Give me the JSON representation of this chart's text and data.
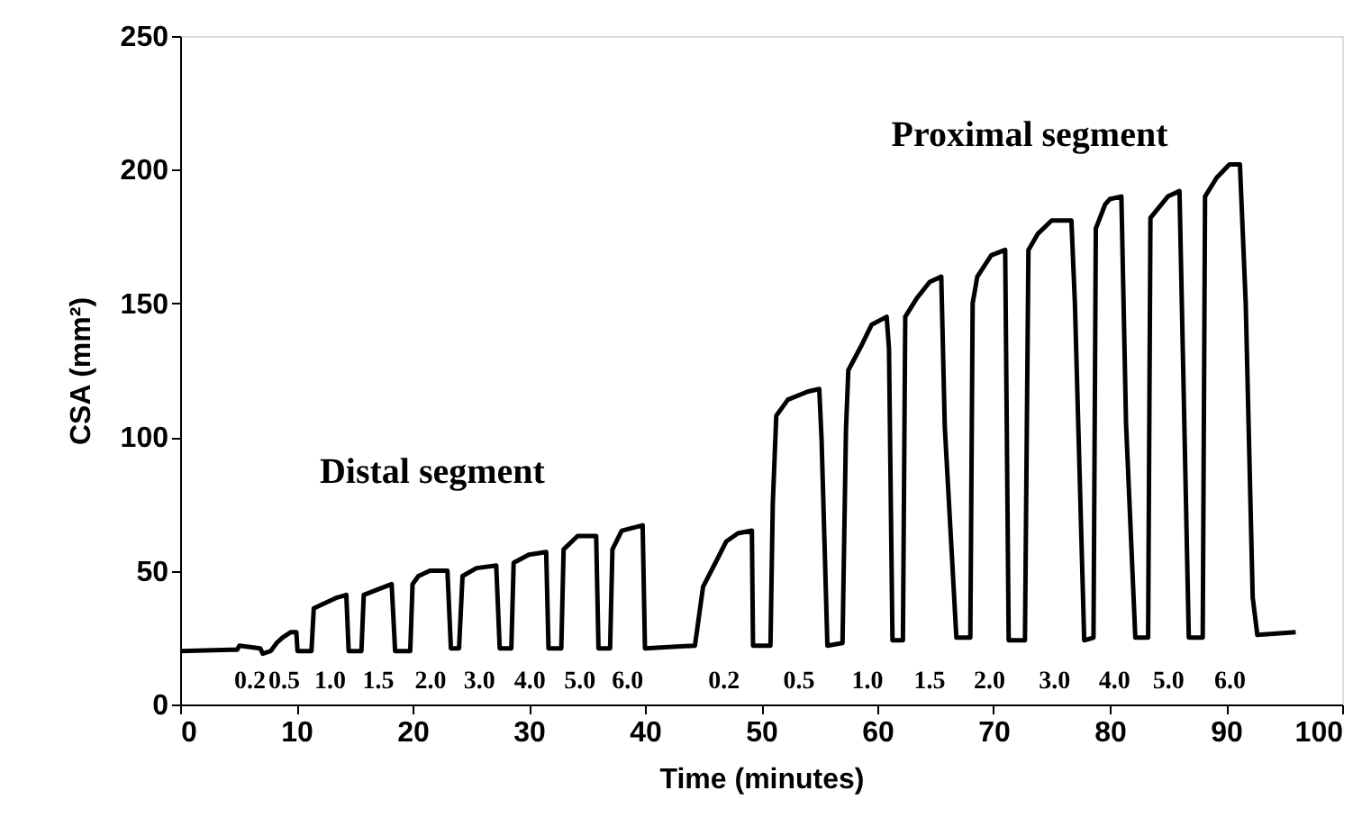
{
  "chart_data": {
    "type": "line",
    "xlabel": "Time (minutes)",
    "ylabel": "CSA (mm²)",
    "xlim": [
      0,
      100
    ],
    "xticks": [
      0,
      10,
      20,
      30,
      40,
      50,
      60,
      70,
      80,
      90,
      100
    ],
    "ylim": [
      0,
      250
    ],
    "yticks": [
      0,
      50,
      100,
      150,
      200,
      250
    ],
    "grid": false,
    "marker": "none",
    "line_style": "solid",
    "series": [
      {
        "color": "#000000",
        "x": [
          0,
          4.9,
          5.1,
          6.9,
          7.1,
          7.8,
          8.3,
          8.8,
          9.5,
          10.0,
          10.1,
          11.3,
          11.5,
          12.5,
          13.5,
          14.3,
          14.5,
          15.6,
          15.8,
          17.0,
          18.2,
          18.5,
          19.8,
          20.0,
          20.5,
          21.5,
          23.0,
          23.3,
          24.0,
          24.3,
          25.5,
          27.2,
          27.5,
          28.5,
          28.7,
          30.0,
          31.5,
          31.7,
          32.8,
          33.0,
          34.2,
          35.8,
          36.0,
          37.0,
          37.2,
          38.0,
          39.8,
          40.0,
          44.3,
          45.0,
          46.3,
          47.0,
          48.0,
          49.2,
          49.3,
          50.8,
          51.0,
          51.3,
          52.3,
          54.0,
          55.0,
          55.2,
          55.7,
          57.0,
          57.3,
          57.5,
          58.6,
          59.5,
          60.8,
          61.0,
          61.3,
          62.2,
          62.4,
          63.4,
          64.5,
          65.5,
          65.8,
          66.8,
          68.0,
          68.2,
          68.6,
          69.8,
          71.0,
          71.3,
          72.7,
          73.0,
          73.8,
          75.0,
          76.7,
          77.0,
          77.8,
          78.6,
          78.8,
          79.6,
          80.0,
          81.0,
          81.4,
          82.2,
          83.3,
          83.5,
          85.0,
          86.0,
          86.8,
          88.0,
          88.2,
          89.2,
          90.3,
          91.2,
          91.7,
          92.3,
          92.7,
          96.0
        ],
        "values": [
          20,
          20.5,
          22,
          21,
          19,
          20,
          23,
          25,
          27,
          27,
          20,
          20,
          36,
          38,
          40,
          41,
          20,
          20,
          41,
          43,
          45,
          20,
          20,
          45,
          48,
          50,
          50,
          21,
          21,
          48,
          51,
          52,
          21,
          21,
          53,
          56,
          57,
          21,
          21,
          58,
          63,
          63,
          21,
          21,
          58,
          65,
          67,
          21,
          22,
          44,
          55,
          61,
          64,
          65,
          22,
          22,
          75,
          108,
          114,
          117,
          118,
          99,
          22,
          23,
          103,
          125,
          134,
          142,
          145,
          133,
          24,
          24,
          145,
          152,
          158,
          160,
          104,
          25,
          25,
          150,
          160,
          168,
          170,
          24,
          24,
          170,
          176,
          181,
          181,
          150,
          24,
          25,
          178,
          187,
          189,
          190,
          105,
          25,
          25,
          182,
          190,
          192,
          25,
          25,
          190,
          197,
          202,
          202,
          150,
          40,
          26,
          27
        ]
      }
    ],
    "annotations": [
      "Distal segment",
      "Proximal segment",
      "0.2",
      "0.5",
      "1.0",
      "1.5",
      "2.0",
      "3.0",
      "4.0",
      "5.0",
      "6.0",
      "0.2",
      "0.5",
      "1.0",
      "1.5",
      "2.0",
      "3.0",
      "4.0",
      "5.0",
      "6.0"
    ]
  }
}
